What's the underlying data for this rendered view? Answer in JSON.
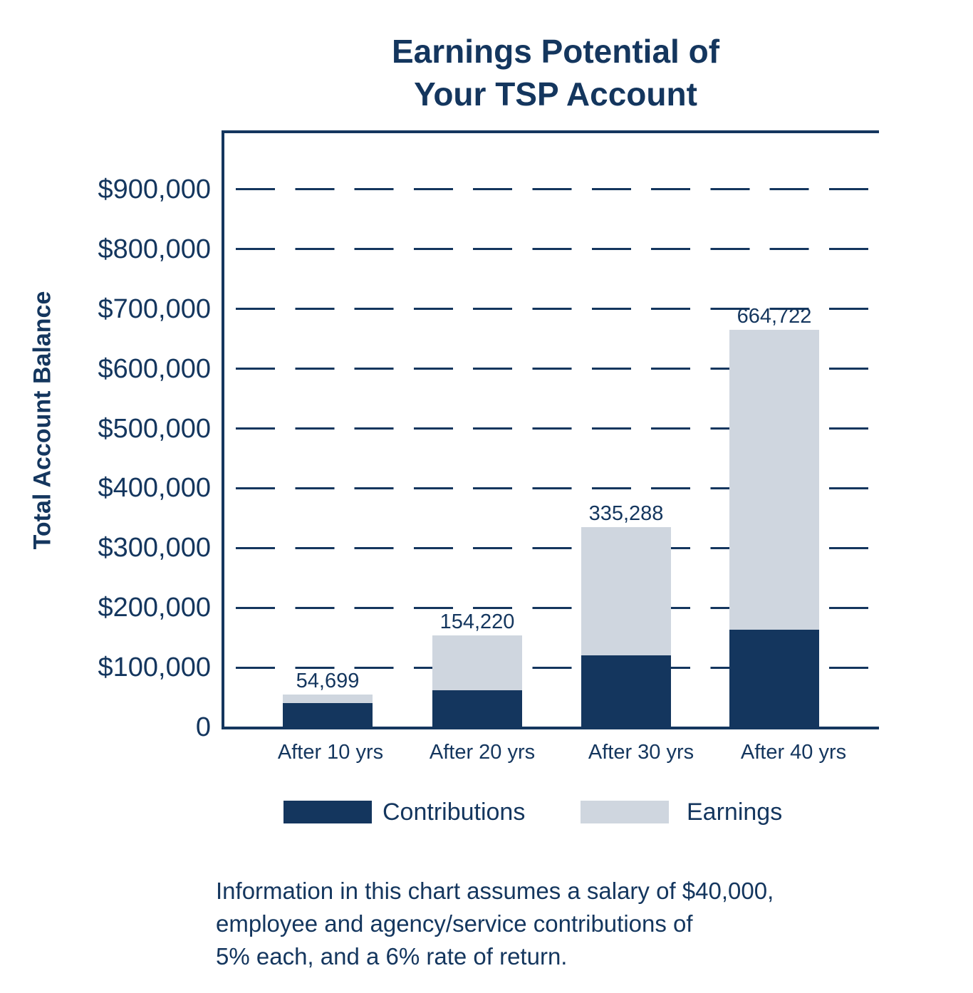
{
  "title_lines": [
    "Earnings Potential of",
    "Your TSP Account"
  ],
  "chart_data": {
    "type": "bar",
    "stacked": true,
    "title": "Earnings Potential of Your TSP Account",
    "xlabel": "",
    "ylabel": "Total Account Balance",
    "ylim": [
      0,
      1000000
    ],
    "grid": true,
    "legend_position": "bottom",
    "categories": [
      "After 10 yrs",
      "After 20 yrs",
      "After 30 yrs",
      "After 40 yrs"
    ],
    "series": [
      {
        "name": "Contributions",
        "color": "#14365e",
        "values": [
          40000,
          62000,
          120000,
          163000
        ]
      },
      {
        "name": "Earnings",
        "color": "#cfd6df",
        "values": [
          14699,
          92220,
          215288,
          501722
        ]
      }
    ],
    "totals": [
      54699,
      154220,
      335288,
      664722
    ],
    "total_labels": [
      "54,699",
      "154,220",
      "335,288",
      "664,722"
    ],
    "yticks": [
      0,
      100000,
      200000,
      300000,
      400000,
      500000,
      600000,
      700000,
      800000,
      900000
    ],
    "ytick_labels": [
      "0",
      "$100,000",
      "$200,000",
      "$300,000",
      "$400,000",
      "$500,000",
      "$600,000",
      "$700,000",
      "$800,000",
      "$900,000"
    ]
  },
  "legend": {
    "items": [
      {
        "label": "Contributions",
        "color": "#14365e"
      },
      {
        "label": "Earnings",
        "color": "#cfd6df"
      }
    ]
  },
  "footnote": {
    "lines": [
      "Information in this chart assumes a salary of $40,000,",
      "employee and agency/service contributions of",
      "5% each, and a 6% rate of return."
    ]
  }
}
